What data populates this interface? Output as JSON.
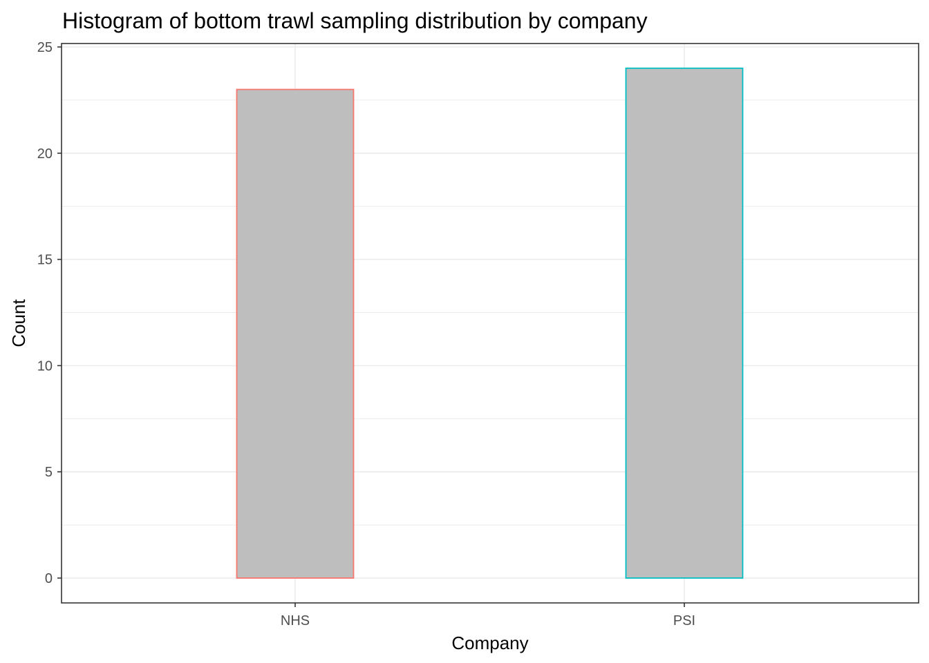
{
  "chart_data": {
    "type": "bar",
    "title": "Histogram of bottom trawl sampling distribution by company",
    "xlabel": "Company",
    "ylabel": "Count",
    "categories": [
      "NHS",
      "PSI"
    ],
    "values": [
      23,
      24
    ],
    "ylim": [
      0,
      25
    ],
    "yticks": [
      "0",
      "5",
      "10",
      "15",
      "20",
      "25"
    ],
    "grid": true,
    "legend": "none",
    "bar_fill_color": "#bebebe",
    "bar_outline_colors": [
      "#f8766d",
      "#00bfc4"
    ]
  }
}
